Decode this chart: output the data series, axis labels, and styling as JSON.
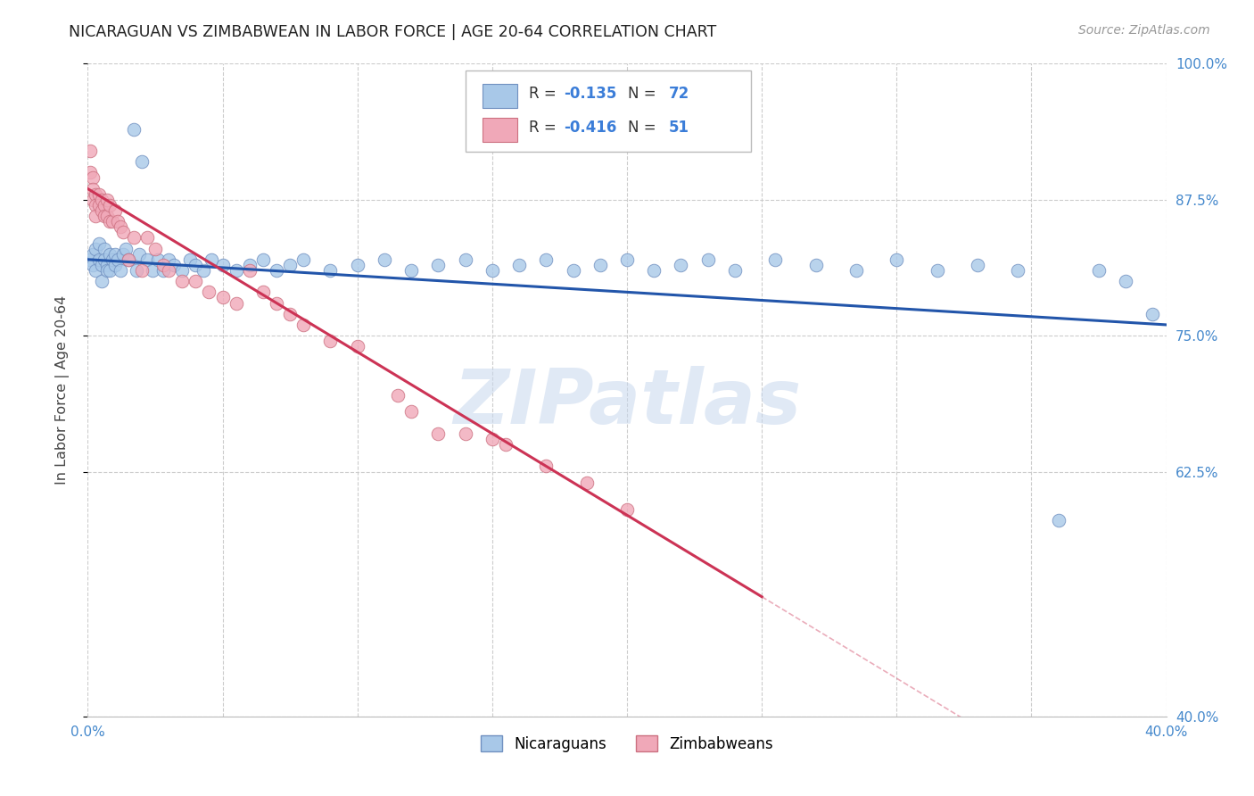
{
  "title": "NICARAGUAN VS ZIMBABWEAN IN LABOR FORCE | AGE 20-64 CORRELATION CHART",
  "source": "Source: ZipAtlas.com",
  "ylabel": "In Labor Force | Age 20-64",
  "xlim": [
    0.0,
    0.4
  ],
  "ylim": [
    0.4,
    1.0
  ],
  "yticks": [
    0.4,
    0.625,
    0.75,
    0.875,
    1.0
  ],
  "ytick_labels": [
    "40.0%",
    "62.5%",
    "75.0%",
    "87.5%",
    "100.0%"
  ],
  "xtick_labels": [
    "0.0%",
    "",
    "",
    "",
    "",
    "",
    "",
    "",
    "40.0%"
  ],
  "blue_R": -0.135,
  "blue_N": 72,
  "pink_R": -0.416,
  "pink_N": 51,
  "blue_color": "#A8C8E8",
  "pink_color": "#F0A8B8",
  "blue_line_color": "#2255AA",
  "pink_line_color": "#CC3355",
  "blue_edge": "#7090C0",
  "pink_edge": "#CC7080",
  "watermark": "ZIPatlas",
  "legend_label_blue": "Nicaraguans",
  "legend_label_pink": "Zimbabweans",
  "blue_x": [
    0.001,
    0.002,
    0.002,
    0.003,
    0.003,
    0.004,
    0.004,
    0.005,
    0.005,
    0.006,
    0.006,
    0.007,
    0.007,
    0.008,
    0.008,
    0.009,
    0.01,
    0.01,
    0.011,
    0.012,
    0.013,
    0.014,
    0.015,
    0.017,
    0.018,
    0.019,
    0.02,
    0.022,
    0.024,
    0.026,
    0.028,
    0.03,
    0.032,
    0.035,
    0.038,
    0.04,
    0.043,
    0.046,
    0.05,
    0.055,
    0.06,
    0.065,
    0.07,
    0.075,
    0.08,
    0.09,
    0.1,
    0.11,
    0.12,
    0.13,
    0.14,
    0.15,
    0.16,
    0.17,
    0.18,
    0.19,
    0.2,
    0.21,
    0.22,
    0.23,
    0.24,
    0.255,
    0.27,
    0.285,
    0.3,
    0.315,
    0.33,
    0.345,
    0.36,
    0.375,
    0.385,
    0.395
  ],
  "blue_y": [
    0.82,
    0.825,
    0.815,
    0.83,
    0.81,
    0.835,
    0.82,
    0.815,
    0.8,
    0.83,
    0.82,
    0.815,
    0.81,
    0.825,
    0.81,
    0.82,
    0.815,
    0.825,
    0.82,
    0.81,
    0.825,
    0.83,
    0.82,
    0.94,
    0.81,
    0.825,
    0.91,
    0.82,
    0.81,
    0.82,
    0.81,
    0.82,
    0.815,
    0.81,
    0.82,
    0.815,
    0.81,
    0.82,
    0.815,
    0.81,
    0.815,
    0.82,
    0.81,
    0.815,
    0.82,
    0.81,
    0.815,
    0.82,
    0.81,
    0.815,
    0.82,
    0.81,
    0.815,
    0.82,
    0.81,
    0.815,
    0.82,
    0.81,
    0.815,
    0.82,
    0.81,
    0.82,
    0.815,
    0.81,
    0.82,
    0.81,
    0.815,
    0.81,
    0.58,
    0.81,
    0.8,
    0.77
  ],
  "pink_x": [
    0.001,
    0.001,
    0.002,
    0.002,
    0.002,
    0.003,
    0.003,
    0.003,
    0.004,
    0.004,
    0.005,
    0.005,
    0.006,
    0.006,
    0.007,
    0.007,
    0.008,
    0.008,
    0.009,
    0.01,
    0.011,
    0.012,
    0.013,
    0.015,
    0.017,
    0.02,
    0.022,
    0.025,
    0.028,
    0.03,
    0.035,
    0.04,
    0.045,
    0.05,
    0.055,
    0.06,
    0.065,
    0.07,
    0.075,
    0.08,
    0.09,
    0.1,
    0.115,
    0.12,
    0.13,
    0.14,
    0.15,
    0.155,
    0.17,
    0.185,
    0.2
  ],
  "pink_y": [
    0.92,
    0.9,
    0.895,
    0.885,
    0.875,
    0.88,
    0.87,
    0.86,
    0.88,
    0.87,
    0.875,
    0.865,
    0.87,
    0.86,
    0.875,
    0.86,
    0.87,
    0.855,
    0.855,
    0.865,
    0.855,
    0.85,
    0.845,
    0.82,
    0.84,
    0.81,
    0.84,
    0.83,
    0.815,
    0.81,
    0.8,
    0.8,
    0.79,
    0.785,
    0.78,
    0.81,
    0.79,
    0.78,
    0.77,
    0.76,
    0.745,
    0.74,
    0.695,
    0.68,
    0.66,
    0.66,
    0.655,
    0.65,
    0.63,
    0.615,
    0.59
  ]
}
